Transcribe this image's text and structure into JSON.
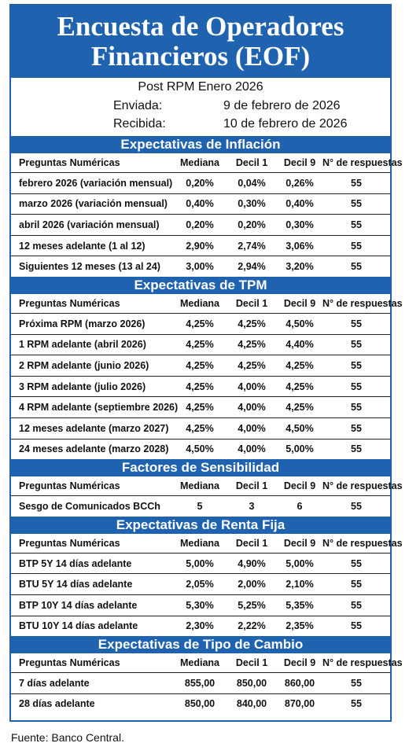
{
  "title_line1": "Encuesta de Operadores",
  "title_line2": "Financieros (EOF)",
  "subtitle": "Post RPM Enero 2026",
  "sent_label": "Enviada:",
  "sent_date": "9 de febrero de 2026",
  "received_label": "Recibida:",
  "received_date": "10 de febrero de 2026",
  "columns": [
    "Preguntas Numéricas",
    "Mediana",
    "Decil 1",
    "Decil 9",
    "N° de respuestas"
  ],
  "sections": [
    {
      "title": "Expectativas de Inflación",
      "rows": [
        [
          "febrero 2026 (variación mensual)",
          "0,20%",
          "0,04%",
          "0,26%",
          "55"
        ],
        [
          "marzo 2026 (variación mensual)",
          "0,40%",
          "0,30%",
          "0,40%",
          "55"
        ],
        [
          "abril 2026 (variación mensual)",
          "0,20%",
          "0,20%",
          "0,30%",
          "55"
        ],
        [
          "12 meses adelante (1 al 12)",
          "2,90%",
          "2,74%",
          "3,06%",
          "55"
        ],
        [
          "Siguientes 12 meses (13 al 24)",
          "3,00%",
          "2,94%",
          "3,20%",
          "55"
        ]
      ]
    },
    {
      "title": "Expectativas de TPM",
      "rows": [
        [
          "Próxima  RPM  (marzo 2026)",
          "4,25%",
          "4,25%",
          "4,50%",
          "55"
        ],
        [
          "1 RPM adelante  (abril 2026)",
          "4,25%",
          "4,25%",
          "4,40%",
          "55"
        ],
        [
          "2 RPM adelante  (junio 2026)",
          "4,25%",
          "4,25%",
          "4,25%",
          "55"
        ],
        [
          "3 RPM adelante  (julio 2026)",
          "4,25%",
          "4,00%",
          "4,25%",
          "55"
        ],
        [
          "4 RPM adelante  (septiembre 2026)",
          "4,25%",
          "4,00%",
          "4,25%",
          "55"
        ],
        [
          "12 meses adelante  (marzo 2027)",
          "4,25%",
          "4,00%",
          "4,50%",
          "55"
        ],
        [
          "24 meses adelante  (marzo 2028)",
          "4,50%",
          "4,00%",
          "5,00%",
          "55"
        ]
      ]
    },
    {
      "title": "Factores de Sensibilidad",
      "rows": [
        [
          "Sesgo de Comunicados BCCh",
          "5",
          "3",
          "6",
          "55"
        ]
      ]
    },
    {
      "title": "Expectativas  de Renta Fija",
      "rows": [
        [
          "BTP 5Y 14 días adelante",
          "5,00%",
          "4,90%",
          "5,00%",
          "55"
        ],
        [
          "BTU 5Y 14 días adelante",
          "2,05%",
          "2,00%",
          "2,10%",
          "55"
        ],
        [
          "BTP 10Y 14 días adelante",
          "5,30%",
          "5,25%",
          "5,35%",
          "55"
        ],
        [
          "BTU 10Y 14 días adelante",
          "2,30%",
          "2,22%",
          "2,35%",
          "55"
        ]
      ]
    },
    {
      "title": "Expectativas  de Tipo de Cambio",
      "rows": [
        [
          "7 días adelante",
          "855,00",
          "850,00",
          "860,00",
          "55"
        ],
        [
          "28 días adelante",
          "850,00",
          "840,00",
          "870,00",
          "55"
        ]
      ]
    }
  ],
  "footer": "Fuente: Banco Central."
}
